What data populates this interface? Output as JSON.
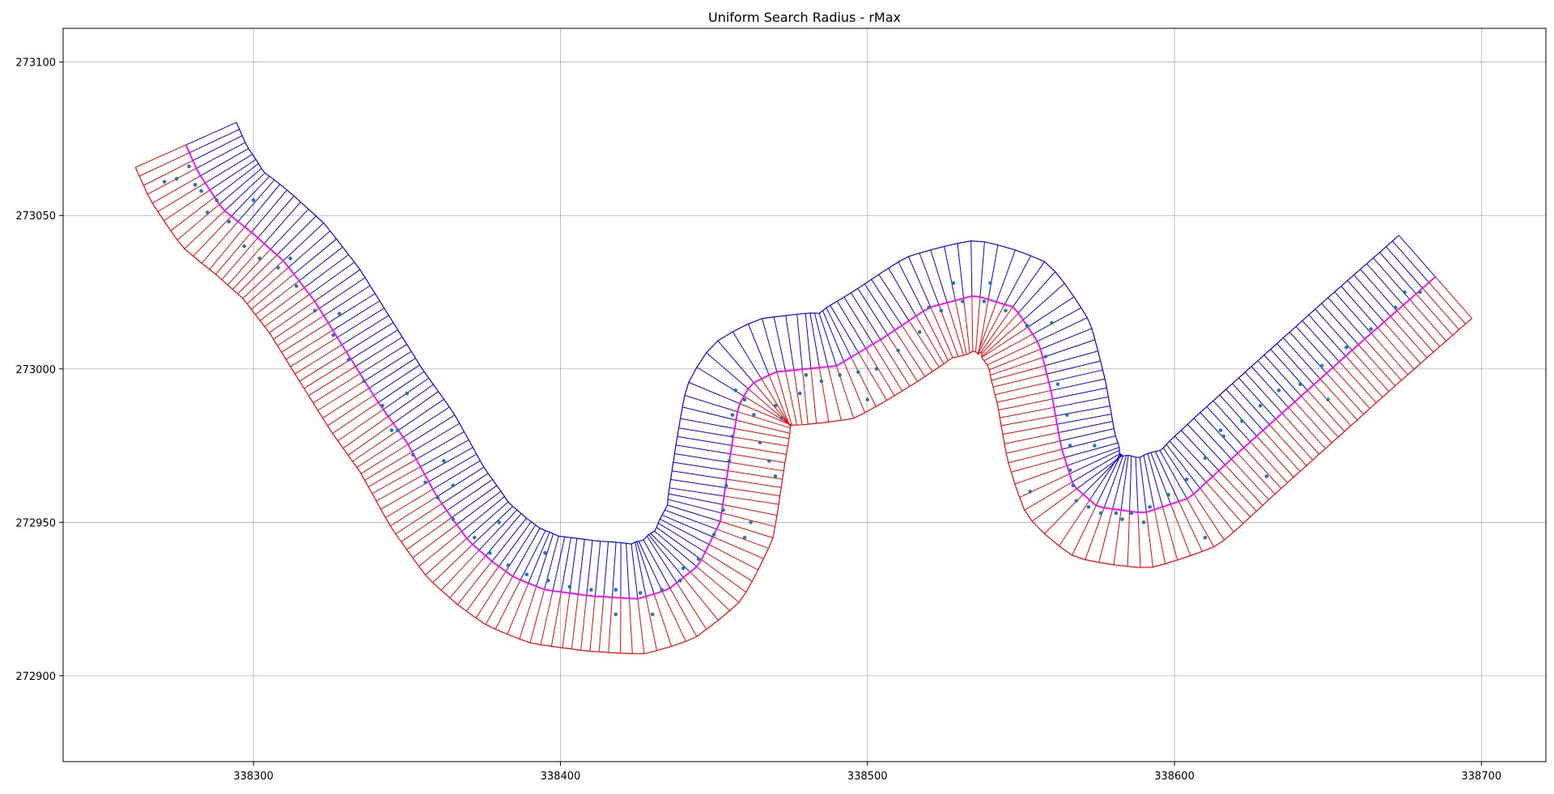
{
  "chart_data": {
    "type": "line",
    "title": "Uniform Search Radius - rMax",
    "xlabel": "",
    "ylabel": "",
    "xlim": [
      338238,
      338721
    ],
    "ylim": [
      272872,
      273111
    ],
    "x_ticks": [
      338300,
      338400,
      338500,
      338600,
      338700
    ],
    "y_ticks": [
      272900,
      272950,
      273000,
      273050,
      273100
    ],
    "grid": true,
    "colors": {
      "centerline": "#ff00ff",
      "left_transects": "#0000ff",
      "right_transects": "#ff0000",
      "points": "#1f77b4",
      "grid": "#b0b0b0"
    },
    "centerline": {
      "x": [
        338278,
        338282,
        338290,
        338300,
        338310,
        338320,
        338330,
        338340,
        338350,
        338360,
        338370,
        338378,
        338385,
        338395,
        338410,
        338425,
        338435,
        338445,
        338452,
        338455,
        338458,
        338462,
        338470,
        338490,
        338505,
        338520,
        338535,
        338548,
        338556,
        338560,
        338563,
        338567,
        338575,
        338590,
        338605,
        338620,
        338640,
        338660,
        338685
      ],
      "y": [
        273073,
        273064,
        273052,
        273044,
        273035,
        273022,
        273006,
        272990,
        272976,
        272958,
        272944,
        272937,
        272932,
        272928,
        272926,
        272925,
        272928,
        272936,
        272950,
        272970,
        272988,
        272995,
        272999,
        273001,
        273010,
        273020,
        273024,
        273020,
        273008,
        272992,
        272975,
        272962,
        272955,
        272953,
        272958,
        272972,
        272990,
        273008,
        273030
      ]
    },
    "transect_radius": 18,
    "transects_per_side": 220,
    "points": {
      "x": [
        338271,
        338275,
        338279,
        338281,
        338283,
        338288,
        338292,
        338297,
        338302,
        338308,
        338314,
        338320,
        338326,
        338331,
        338336,
        338342,
        338347,
        338352,
        338356,
        338360,
        338365,
        338372,
        338377,
        338383,
        338389,
        338396,
        338403,
        338410,
        338418,
        338426,
        338433,
        338439,
        338445,
        338450,
        338453,
        338454,
        338455,
        338456,
        338456,
        338457,
        338460,
        338463,
        338465,
        338468,
        338472,
        338478,
        338485,
        338491,
        338497,
        338503,
        338510,
        338517,
        338524,
        338531,
        338538,
        338545,
        338552,
        338558,
        338562,
        338565,
        338566,
        338566,
        338567,
        338568,
        338572,
        338576,
        338581,
        338586,
        338592,
        338598,
        338604,
        338610,
        338616,
        338622,
        338628,
        338634,
        338641,
        338648,
        338656,
        338664,
        338672,
        338680,
        338285,
        338312,
        338328,
        338345,
        338362,
        338380,
        338395,
        338418,
        338440,
        338462,
        338470,
        338480,
        338500,
        338520,
        338540,
        338560,
        338574,
        338590,
        338610,
        338630,
        338650,
        338675,
        338300,
        338350,
        338365,
        338430,
        338460,
        338470,
        338528,
        338553,
        338583,
        338615
      ],
      "y": [
        273061,
        273062,
        273066,
        273060,
        273058,
        273055,
        273048,
        273040,
        273036,
        273033,
        273027,
        273019,
        273011,
        273003,
        272996,
        272988,
        272980,
        272972,
        272963,
        272958,
        272951,
        272945,
        272940,
        272936,
        272933,
        272931,
        272929,
        272928,
        272928,
        272927,
        272928,
        272931,
        272938,
        272946,
        272954,
        272962,
        272970,
        272978,
        272985,
        272993,
        272990,
        272985,
        272976,
        272970,
        272984,
        272992,
        272996,
        272998,
        272999,
        273000,
        273006,
        273012,
        273019,
        273022,
        273022,
        273019,
        273014,
        273004,
        272995,
        272985,
        272975,
        272967,
        272962,
        272957,
        272955,
        272953,
        272953,
        272953,
        272955,
        272959,
        272964,
        272971,
        272978,
        272983,
        272988,
        272993,
        272995,
        273001,
        273007,
        273013,
        273020,
        273025,
        273051,
        273036,
        273018,
        272980,
        272970,
        272950,
        272940,
        272920,
        272935,
        272950,
        272965,
        272998,
        272990,
        273020,
        273028,
        273015,
        272975,
        272950,
        272945,
        272965,
        272990,
        273025,
        273055,
        272992,
        272962,
        272920,
        272945,
        272988,
        273028,
        272960,
        272951,
        272980
      ]
    }
  }
}
